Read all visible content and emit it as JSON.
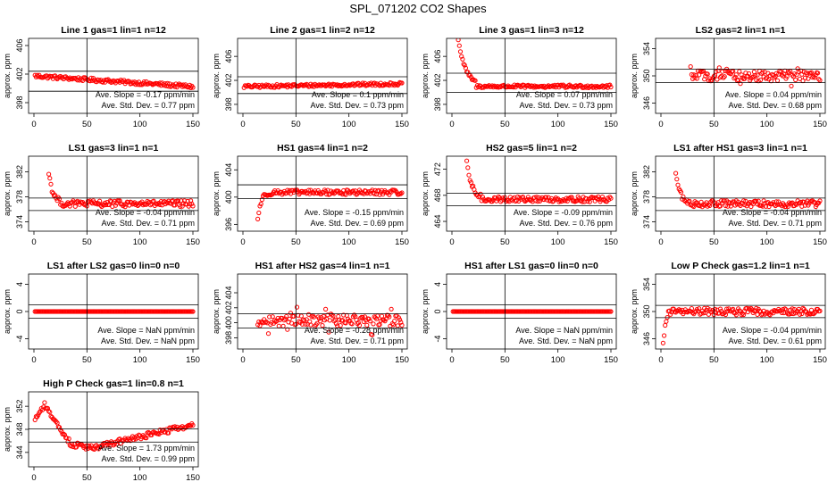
{
  "figure": {
    "title": "SPL_071202  CO2 Shapes"
  },
  "chart_data": [
    {
      "type": "scatter",
      "title": "Line 1 gas=1 lin=1 n=12",
      "ylabel": "approx. ppm",
      "xlim": [
        0,
        150
      ],
      "ylim": [
        396.5,
        407
      ],
      "yticks": [
        398,
        402,
        406
      ],
      "xticks": [
        0,
        50,
        100,
        150
      ],
      "hlines": [
        402.4,
        399.6
      ],
      "vline": 50,
      "slope": "Ave. Slope =  -0.17  ppm/min",
      "stddev": "Ave. Std. Dev. =  0.77  ppm",
      "series": {
        "shape": "flat",
        "start": 1,
        "end": 150,
        "base": 401.0,
        "trend": -0.01,
        "noise": 0.25
      }
    },
    {
      "type": "scatter",
      "title": "Line 2 gas=1 lin=2 n=12",
      "ylabel": "approx. ppm",
      "xlim": [
        0,
        150
      ],
      "ylim": [
        396.5,
        409
      ],
      "yticks": [
        398,
        402,
        406
      ],
      "xticks": [
        0,
        50,
        100,
        150
      ],
      "hlines": [
        402.6,
        399.8
      ],
      "vline": 50,
      "slope": "Ave. Slope =  0.1  ppm/min",
      "stddev": "Ave. Std. Dev. =  0.73  ppm",
      "series": {
        "shape": "flat",
        "start": 1,
        "end": 150,
        "base": 401.2,
        "trend": 0.003,
        "noise": 0.25
      }
    },
    {
      "type": "scatter",
      "title": "Line 3 gas=1 lin=3 n=12",
      "ylabel": "approx. ppm",
      "xlim": [
        0,
        150
      ],
      "ylim": [
        396.5,
        409
      ],
      "yticks": [
        398,
        402,
        406
      ],
      "xticks": [
        0,
        50,
        100,
        150
      ],
      "hlines": [
        403.2,
        400.0
      ],
      "vline": 50,
      "slope": "Ave. Slope =  0.07  ppm/min",
      "stddev": "Ave. Std. Dev. =  0.73  ppm",
      "series": {
        "shape": "decay",
        "start": 1,
        "end": 150,
        "base": 401.0,
        "amp": 16,
        "tau": 7,
        "lead": 22,
        "noise": 0.25
      }
    },
    {
      "type": "scatter",
      "title": "LS2 gas=2 lin=1 n=1",
      "ylabel": "approx. ppm",
      "xlim": [
        0,
        150
      ],
      "ylim": [
        344.5,
        355.5
      ],
      "yticks": [
        346,
        350,
        354
      ],
      "xticks": [
        0,
        50,
        100,
        150
      ],
      "hlines": [
        351.0,
        349.0
      ],
      "vline": 50,
      "slope": "Ave. Slope =  0.04  ppm/min",
      "stddev": "Ave. Std. Dev. =  0.68  ppm",
      "series": {
        "shape": "scatter",
        "start": 28,
        "end": 150,
        "base": 350.0,
        "trend": 0.0,
        "noise": 0.75
      }
    },
    {
      "type": "scatter",
      "title": "LS1 gas=3 lin=1 n=1",
      "ylabel": "approx. ppm",
      "xlim": [
        0,
        150
      ],
      "ylim": [
        372.5,
        384.5
      ],
      "yticks": [
        374,
        378,
        382
      ],
      "xticks": [
        0,
        50,
        100,
        150
      ],
      "hlines": [
        377.8,
        375.8
      ],
      "vline": 50,
      "slope": "Ave. Slope =  -0.04  ppm/min",
      "stddev": "Ave. Std. Dev. =  0.71  ppm",
      "series": {
        "shape": "decay",
        "start": 14,
        "end": 150,
        "base": 376.9,
        "amp": 5,
        "tau": 4,
        "lead": 12,
        "noise": 0.5
      }
    },
    {
      "type": "scatter",
      "title": "HS1 gas=4 lin=1 n=2",
      "ylabel": "approx. ppm",
      "xlim": [
        0,
        150
      ],
      "ylim": [
        395,
        406
      ],
      "yticks": [
        396,
        400,
        404
      ],
      "xticks": [
        0,
        50,
        100,
        150
      ],
      "hlines": [
        401.8,
        399.8
      ],
      "vline": 50,
      "slope": "Ave. Slope =  -0.15  ppm/min",
      "stddev": "Ave. Std. Dev. =  0.69  ppm",
      "series": {
        "shape": "rise",
        "start": 14,
        "end": 150,
        "base": 400.7,
        "amp": 4,
        "tau": 3,
        "lead": 14,
        "noise": 0.35
      }
    },
    {
      "type": "scatter",
      "title": "HS2 gas=5 lin=1 n=2",
      "ylabel": "approx. ppm",
      "xlim": [
        0,
        150
      ],
      "ylim": [
        462.5,
        474
      ],
      "yticks": [
        464,
        468,
        472
      ],
      "xticks": [
        0,
        50,
        100,
        150
      ],
      "hlines": [
        468.3,
        466.4
      ],
      "vline": 50,
      "slope": "Ave. Slope =  -0.09  ppm/min",
      "stddev": "Ave. Std. Dev. =  0.76  ppm",
      "series": {
        "shape": "decay",
        "start": 14,
        "end": 150,
        "base": 467.4,
        "amp": 5.5,
        "tau": 5,
        "lead": 14,
        "noise": 0.4
      }
    },
    {
      "type": "scatter",
      "title": "LS1 after HS1 gas=3 lin=1 n=1",
      "ylabel": "approx. ppm",
      "xlim": [
        0,
        150
      ],
      "ylim": [
        372.5,
        384.5
      ],
      "yticks": [
        374,
        378,
        382
      ],
      "xticks": [
        0,
        50,
        100,
        150
      ],
      "hlines": [
        377.8,
        375.8
      ],
      "vline": 50,
      "slope": "Ave. Slope =  -0.04  ppm/min",
      "stddev": "Ave. Std. Dev. =  0.71  ppm",
      "series": {
        "shape": "decay",
        "start": 14,
        "end": 150,
        "base": 376.9,
        "amp": 5,
        "tau": 4,
        "lead": 12,
        "noise": 0.5
      }
    },
    {
      "type": "scatter",
      "title": "LS1 after LS2 gas=0 lin=0 n=0",
      "ylabel": "approx. ppm",
      "xlim": [
        0,
        150
      ],
      "ylim": [
        -5.5,
        5.5
      ],
      "yticks": [
        -4,
        0,
        4
      ],
      "xticks": [
        0,
        50,
        100,
        150
      ],
      "hlines": [
        1.0,
        -1.0
      ],
      "vline": 50,
      "slope": "Ave. Slope =  NaN  ppm/min",
      "stddev": "Ave. Std. Dev. =  NaN  ppm",
      "series": {
        "shape": "zero",
        "start": 1,
        "end": 150,
        "base": 0
      }
    },
    {
      "type": "scatter",
      "title": "HS1 after HS2 gas=4 lin=1 n=1",
      "ylabel": "approx. ppm",
      "xlim": [
        0,
        150
      ],
      "ylim": [
        396.5,
        406.5
      ],
      "yticks": [
        398,
        400,
        402,
        404
      ],
      "xticks": [
        0,
        50,
        100,
        150
      ],
      "hlines": [
        401.2,
        399.3
      ],
      "vline": 50,
      "slope": "Ave. Slope =  -0.28  ppm/min",
      "stddev": "Ave. Std. Dev. =  0.71  ppm",
      "series": {
        "shape": "scatter",
        "start": 14,
        "end": 150,
        "base": 400.3,
        "trend": 0.0,
        "noise": 0.75
      }
    },
    {
      "type": "scatter",
      "title": "HS1 after LS1 gas=0 lin=0 n=0",
      "ylabel": "approx. ppm",
      "xlim": [
        0,
        150
      ],
      "ylim": [
        -5.5,
        5.5
      ],
      "yticks": [
        -4,
        0,
        4
      ],
      "xticks": [
        0,
        50,
        100,
        150
      ],
      "hlines": [
        1.0,
        -1.0
      ],
      "vline": 50,
      "slope": "Ave. Slope =  NaN  ppm/min",
      "stddev": "Ave. Std. Dev. =  NaN  ppm",
      "series": {
        "shape": "zero",
        "start": 1,
        "end": 150,
        "base": 0
      }
    },
    {
      "type": "scatter",
      "title": "Low P Check gas=1.2 lin=1 n=1",
      "ylabel": "approx. ppm",
      "xlim": [
        0,
        150
      ],
      "ylim": [
        344.5,
        355.5
      ],
      "yticks": [
        346,
        350,
        354
      ],
      "xticks": [
        0,
        50,
        100,
        150
      ],
      "hlines": [
        350.9,
        349.1
      ],
      "vline": 50,
      "slope": "Ave. Slope =  -0.04  ppm/min",
      "stddev": "Ave. Std. Dev. =  0.61  ppm",
      "series": {
        "shape": "rise",
        "start": 2,
        "end": 150,
        "base": 350.0,
        "amp": 5,
        "tau": 2,
        "lead": 6,
        "noise": 0.5
      }
    },
    {
      "type": "scatter",
      "title": "High P Check gas=1 lin=0.8 n=1",
      "ylabel": "approx. ppm",
      "xlim": [
        0,
        150
      ],
      "ylim": [
        341.5,
        354.5
      ],
      "yticks": [
        344,
        348,
        352
      ],
      "xticks": [
        0,
        50,
        100,
        150
      ],
      "hlines": [
        348.1,
        345.8
      ],
      "vline": 50,
      "slope": "Ave. Slope =  1.73  ppm/min",
      "stddev": "Ave. Std. Dev. =  0.99  ppm",
      "series": {
        "shape": "highp",
        "start": 1,
        "end": 150,
        "noise": 0.45
      }
    }
  ]
}
